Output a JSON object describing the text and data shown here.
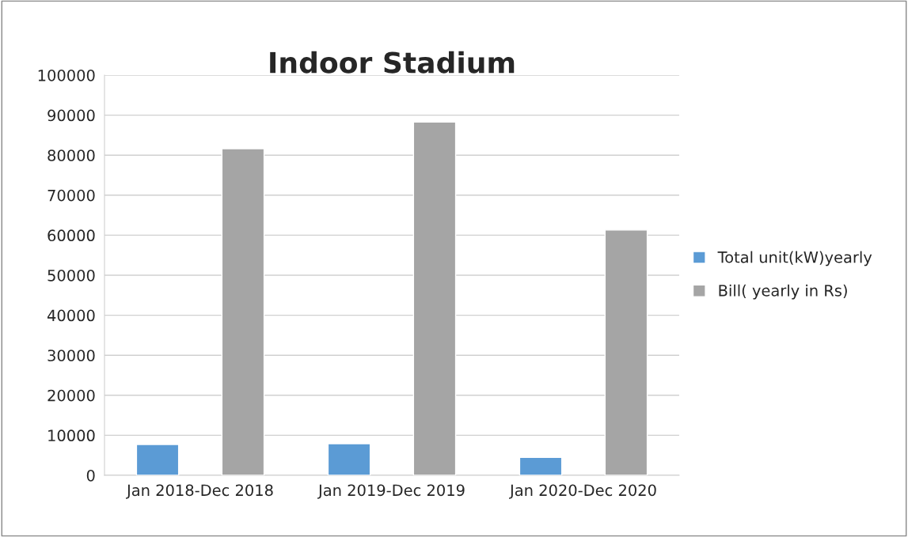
{
  "chart_data": {
    "type": "bar",
    "title": "Indoor Stadium",
    "categories": [
      "Jan 2018-Dec 2018",
      "Jan 2019-Dec 2019",
      "Jan 2020-Dec 2020"
    ],
    "series": [
      {
        "name": "Total unit(kW)yearly",
        "color": "#5b9bd5",
        "values": [
          7700,
          7900,
          4500
        ]
      },
      {
        "name": "Bill( yearly in Rs)",
        "color": "#a5a5a5",
        "values": [
          81600,
          88300,
          61300
        ]
      }
    ],
    "ylim": [
      0,
      100000
    ],
    "yticks": [
      0,
      10000,
      20000,
      30000,
      40000,
      50000,
      60000,
      70000,
      80000,
      90000,
      100000
    ],
    "grid": "y",
    "legend": "right"
  }
}
